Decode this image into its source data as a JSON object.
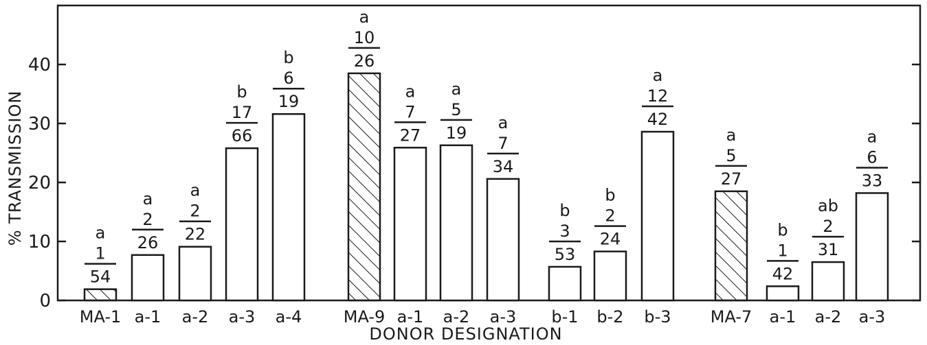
{
  "chart_data": {
    "type": "bar",
    "xlabel": "DONOR DESIGNATION",
    "ylabel": "% TRANSMISSION",
    "ylim": [
      0,
      50
    ],
    "yticks": [
      0,
      10,
      20,
      30,
      40
    ],
    "yticks_labels": [
      "0",
      "10",
      "20",
      "30",
      "40"
    ],
    "grid": false,
    "colors": {
      "bar_outline": "#1a1a1a",
      "bar_fill": "#ffffff",
      "hatch": "#1a1a1a"
    },
    "bars": [
      {
        "label": "MA-1",
        "value": 1.9,
        "hatched": true,
        "letter": "a",
        "numerator": "1",
        "denominator": "54"
      },
      {
        "label": "a-1",
        "value": 7.7,
        "hatched": false,
        "letter": "a",
        "numerator": "2",
        "denominator": "26"
      },
      {
        "label": "a-2",
        "value": 9.1,
        "hatched": false,
        "letter": "a",
        "numerator": "2",
        "denominator": "22"
      },
      {
        "label": "a-3",
        "value": 25.8,
        "hatched": false,
        "letter": "b",
        "numerator": "17",
        "denominator": "66"
      },
      {
        "label": "a-4",
        "value": 31.6,
        "hatched": false,
        "letter": "b",
        "numerator": "6",
        "denominator": "19"
      },
      {
        "label": "MA-9",
        "value": 38.5,
        "hatched": true,
        "letter": "a",
        "numerator": "10",
        "denominator": "26"
      },
      {
        "label": "a-1",
        "value": 25.9,
        "hatched": false,
        "letter": "a",
        "numerator": "7",
        "denominator": "27"
      },
      {
        "label": "a-2",
        "value": 26.3,
        "hatched": false,
        "letter": "a",
        "numerator": "5",
        "denominator": "19"
      },
      {
        "label": "a-3",
        "value": 20.6,
        "hatched": false,
        "letter": "a",
        "numerator": "7",
        "denominator": "34"
      },
      {
        "label": "b-1",
        "value": 5.7,
        "hatched": false,
        "letter": "b",
        "numerator": "3",
        "denominator": "53"
      },
      {
        "label": "b-2",
        "value": 8.3,
        "hatched": false,
        "letter": "b",
        "numerator": "2",
        "denominator": "24"
      },
      {
        "label": "b-3",
        "value": 28.6,
        "hatched": false,
        "letter": "a",
        "numerator": "12",
        "denominator": "42"
      },
      {
        "label": "MA-7",
        "value": 18.5,
        "hatched": true,
        "letter": "a",
        "numerator": "5",
        "denominator": "27"
      },
      {
        "label": "a-1",
        "value": 2.4,
        "hatched": false,
        "letter": "b",
        "numerator": "1",
        "denominator": "42"
      },
      {
        "label": "a-2",
        "value": 6.5,
        "hatched": false,
        "letter": "ab",
        "numerator": "2",
        "denominator": "31"
      },
      {
        "label": "a-3",
        "value": 18.2,
        "hatched": false,
        "letter": "a",
        "numerator": "6",
        "denominator": "33"
      }
    ]
  }
}
